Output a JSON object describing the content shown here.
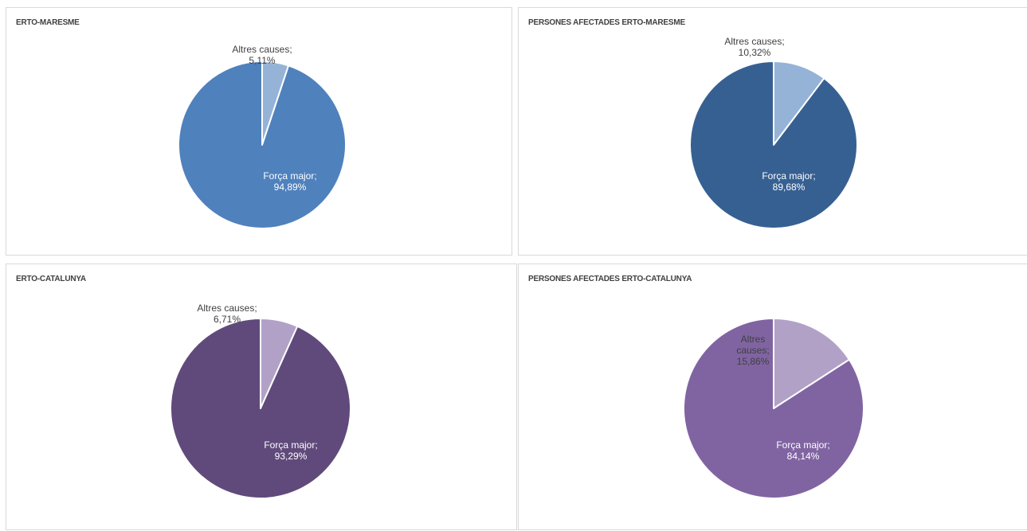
{
  "charts": [
    {
      "title": "ERTO-MARESME",
      "chart_data": {
        "type": "pie",
        "slices": [
          {
            "name": "Altres causes",
            "value": 5.11,
            "label_lines": [
              "Altres causes;",
              "5,11%"
            ],
            "color": "#95b3d7",
            "label_color": "#404040",
            "label_position": "outside"
          },
          {
            "name": "Força major",
            "value": 94.89,
            "label_lines": [
              "Força major;",
              "94,89%"
            ],
            "color": "#4f81bd",
            "label_color": "#ffffff",
            "label_position": "inside"
          }
        ]
      }
    },
    {
      "title": "PERSONES AFECTADES ERTO-MARESME",
      "chart_data": {
        "type": "pie",
        "slices": [
          {
            "name": "Altres causes",
            "value": 10.32,
            "label_lines": [
              "Altres causes;",
              "10,32%"
            ],
            "color": "#95b3d7",
            "label_color": "#404040",
            "label_position": "outside"
          },
          {
            "name": "Força major",
            "value": 89.68,
            "label_lines": [
              "Força major;",
              "89,68%"
            ],
            "color": "#376092",
            "label_color": "#ffffff",
            "label_position": "inside"
          }
        ]
      }
    },
    {
      "title": "ERTO-CATALUNYA",
      "chart_data": {
        "type": "pie",
        "slices": [
          {
            "name": "Altres causes",
            "value": 6.71,
            "label_lines": [
              "Altres causes;",
              "6,71%"
            ],
            "color": "#b2a1c7",
            "label_color": "#404040",
            "label_position": "outside"
          },
          {
            "name": "Força major",
            "value": 93.29,
            "label_lines": [
              "Força major;",
              "93,29%"
            ],
            "color": "#604a7b",
            "label_color": "#ffffff",
            "label_position": "inside"
          }
        ]
      }
    },
    {
      "title": "PERSONES AFECTADES ERTO-CATALUNYA",
      "chart_data": {
        "type": "pie",
        "slices": [
          {
            "name": "Altres causes",
            "value": 15.86,
            "label_lines": [
              "Altres",
              "causes;",
              "15,86%"
            ],
            "color": "#b2a1c7",
            "label_color": "#404040",
            "label_position": "inside"
          },
          {
            "name": "Força major",
            "value": 84.14,
            "label_lines": [
              "Força major;",
              "84,14%"
            ],
            "color": "#8064a2",
            "label_color": "#ffffff",
            "label_position": "inside"
          }
        ]
      }
    }
  ]
}
